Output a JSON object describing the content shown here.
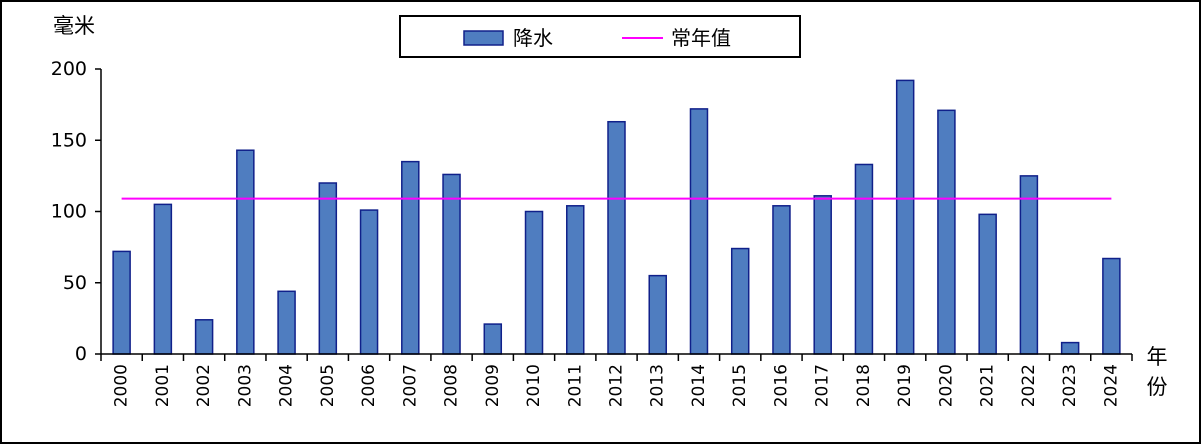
{
  "chart_data": {
    "type": "bar",
    "categories": [
      "2000",
      "2001",
      "2002",
      "2003",
      "2004",
      "2005",
      "2006",
      "2007",
      "2008",
      "2009",
      "2010",
      "2011",
      "2012",
      "2013",
      "2014",
      "2015",
      "2016",
      "2017",
      "2018",
      "2019",
      "2020",
      "2021",
      "2022",
      "2023",
      "2024"
    ],
    "series": [
      {
        "name": "降水",
        "type": "bar",
        "values": [
          72,
          105,
          24,
          143,
          44,
          120,
          101,
          135,
          126,
          21,
          100,
          104,
          163,
          55,
          172,
          74,
          104,
          111,
          133,
          192,
          171,
          98,
          125,
          8,
          67
        ],
        "color": "#4F7DC0",
        "edge_color": "#10208A"
      },
      {
        "name": "常年值",
        "type": "line",
        "value": 109,
        "color": "#FF00FF"
      }
    ],
    "title": "",
    "ylabel": "毫米",
    "xlabel": "年份",
    "ylim": [
      0,
      200
    ],
    "yticks": [
      0,
      50,
      100,
      150,
      200
    ],
    "grid": false,
    "legend": "top-center",
    "xtick_rotation": "vertical"
  }
}
